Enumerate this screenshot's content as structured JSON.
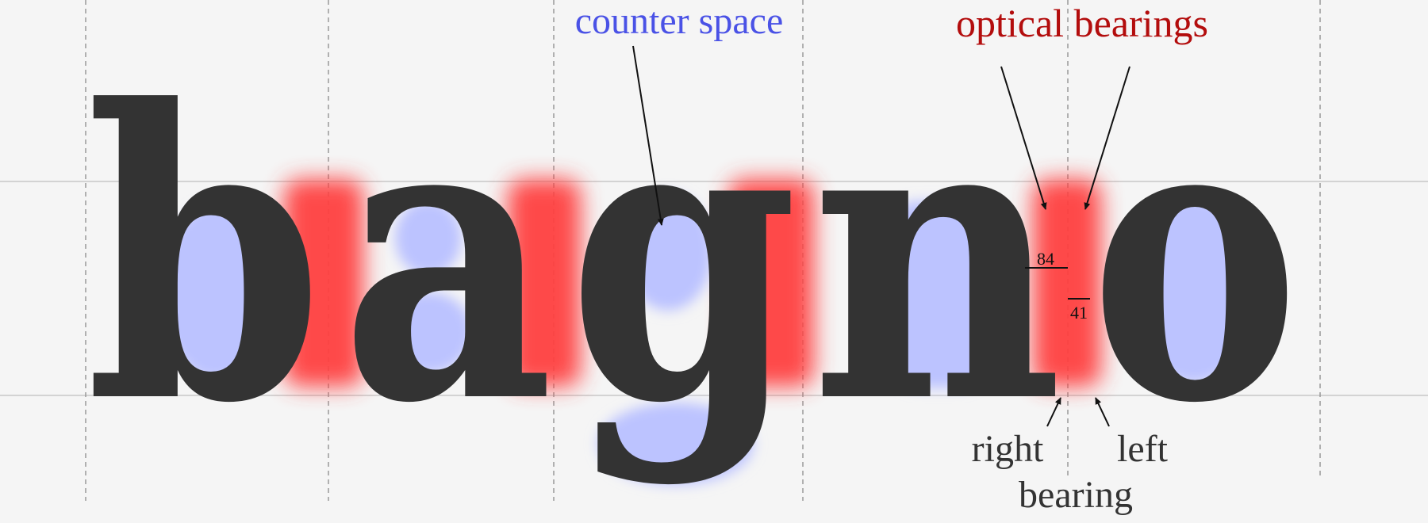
{
  "word": {
    "letters": [
      "b",
      "a",
      "g",
      "n",
      "o"
    ]
  },
  "annotations": {
    "counter_space_label": "counter space",
    "optical_bearings_label": "optical bearings",
    "measure_right": "84",
    "measure_left": "41",
    "right_label": "right",
    "left_label": "left",
    "bearing_label": "bearing"
  },
  "colors": {
    "background": "#f5f5f5",
    "glyph": "#333333",
    "counter_space": "#bcc3ff",
    "counter_space_label": "#4a52e6",
    "optical_bearings": "#ff4040",
    "optical_bearings_label": "#b30d0d",
    "label_dark": "#333333"
  }
}
